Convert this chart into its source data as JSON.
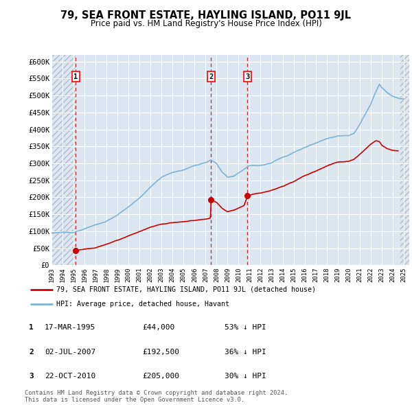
{
  "title": "79, SEA FRONT ESTATE, HAYLING ISLAND, PO11 9JL",
  "subtitle": "Price paid vs. HM Land Registry's House Price Index (HPI)",
  "ylim": [
    0,
    620000
  ],
  "yticks": [
    0,
    50000,
    100000,
    150000,
    200000,
    250000,
    300000,
    350000,
    400000,
    450000,
    500000,
    550000,
    600000
  ],
  "ytick_labels": [
    "£0",
    "£50K",
    "£100K",
    "£150K",
    "£200K",
    "£250K",
    "£300K",
    "£350K",
    "£400K",
    "£450K",
    "£500K",
    "£550K",
    "£600K"
  ],
  "sale_dates": [
    1995.21,
    2007.5,
    2010.81
  ],
  "sale_prices": [
    44000,
    192500,
    205000
  ],
  "sale_labels": [
    "1",
    "2",
    "3"
  ],
  "hpi_color": "#7ab4d8",
  "price_color": "#cc0000",
  "background_color": "#dce6f0",
  "legend_line1": "79, SEA FRONT ESTATE, HAYLING ISLAND, PO11 9JL (detached house)",
  "legend_line2": "HPI: Average price, detached house, Havant",
  "table_entries": [
    {
      "num": "1",
      "date": "17-MAR-1995",
      "price": "£44,000",
      "hpi": "53% ↓ HPI"
    },
    {
      "num": "2",
      "date": "02-JUL-2007",
      "price": "£192,500",
      "hpi": "36% ↓ HPI"
    },
    {
      "num": "3",
      "date": "22-OCT-2010",
      "price": "£205,000",
      "hpi": "30% ↓ HPI"
    }
  ],
  "footer": "Contains HM Land Registry data © Crown copyright and database right 2024.\nThis data is licensed under the Open Government Licence v3.0.",
  "xlim_start": 1993.0,
  "xlim_end": 2025.5,
  "xticks": [
    1993,
    1994,
    1995,
    1996,
    1997,
    1998,
    1999,
    2000,
    2001,
    2002,
    2003,
    2004,
    2005,
    2006,
    2007,
    2008,
    2009,
    2010,
    2011,
    2012,
    2013,
    2014,
    2015,
    2016,
    2017,
    2018,
    2019,
    2020,
    2021,
    2022,
    2023,
    2024,
    2025
  ]
}
